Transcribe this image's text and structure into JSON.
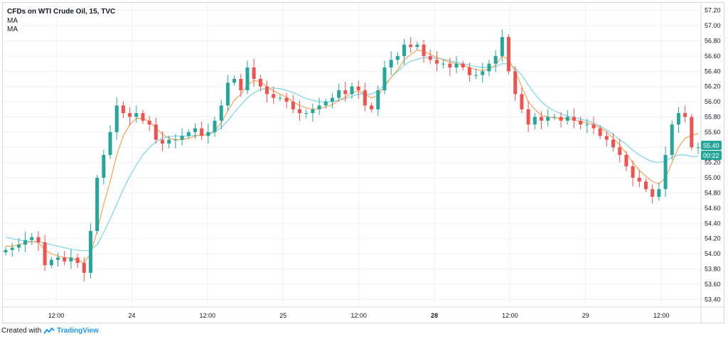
{
  "legend": {
    "title": "CFDs on WTI Crude Oil, 15, TVC",
    "ma1": "MA",
    "ma2": "MA"
  },
  "footer": {
    "created_with": "Created with",
    "brand": "TradingView"
  },
  "price_tag": {
    "price": "55.40",
    "countdown": "00:22"
  },
  "colors": {
    "up": "#26a69a",
    "down": "#ef5350",
    "ma_fast": "#f7a25c",
    "ma_slow": "#7fd3e6",
    "grid": "#eef0f3",
    "tag_bg": "#26a69a"
  },
  "chart_data": {
    "type": "candlestick",
    "title": "CFDs on WTI Crude Oil, 15, TVC",
    "ylim": [
      53.3,
      57.3
    ],
    "y_ticks": [
      "57.20",
      "57.00",
      "56.80",
      "56.60",
      "56.40",
      "56.20",
      "56.00",
      "55.80",
      "55.60",
      "55.40",
      "55.20",
      "55.00",
      "54.80",
      "54.60",
      "54.40",
      "54.20",
      "54.00",
      "53.80",
      "53.60",
      "53.40"
    ],
    "x_ticks": [
      "12:00",
      "24",
      "12:00",
      "25",
      "12:00",
      "28",
      "12:00",
      "29",
      "12:00"
    ],
    "x_ticks_bold": [
      "28"
    ],
    "grid": true,
    "series": [
      {
        "name": "",
        "kind": "close",
        "values": [
          54.05,
          54.08,
          54.12,
          54.18,
          54.22,
          54.15,
          53.85,
          53.92,
          53.95,
          53.9,
          53.95,
          53.88,
          53.75,
          54.3,
          55.0,
          55.3,
          55.6,
          55.95,
          55.85,
          55.8,
          55.85,
          55.75,
          55.7,
          55.5,
          55.45,
          55.5,
          55.5,
          55.55,
          55.6,
          55.65,
          55.55,
          55.6,
          55.75,
          55.95,
          56.25,
          56.3,
          56.15,
          56.45,
          56.3,
          56.2,
          56.1,
          56.05,
          56.05,
          56.0,
          55.9,
          55.85,
          55.85,
          55.9,
          55.95,
          56.0,
          56.05,
          56.15,
          56.1,
          56.2,
          56.15,
          55.95,
          55.9,
          56.15,
          56.45,
          56.55,
          56.6,
          56.75,
          56.72,
          56.75,
          56.6,
          56.55,
          56.5,
          56.5,
          56.45,
          56.5,
          56.45,
          56.35,
          56.35,
          56.4,
          56.5,
          56.6,
          56.85,
          56.4,
          56.1,
          55.9,
          55.7,
          55.8,
          55.75,
          55.8,
          55.8,
          55.75,
          55.8,
          55.75,
          55.7,
          55.7,
          55.65,
          55.55,
          55.5,
          55.4,
          55.3,
          55.15,
          55.0,
          54.95,
          54.85,
          54.75,
          54.85,
          55.3,
          55.7,
          55.85,
          55.8,
          55.4,
          55.4
        ]
      },
      {
        "name": "",
        "kind": "ma_fast",
        "values": [
          54.1,
          54.1,
          54.12,
          54.14,
          54.16,
          54.15,
          54.05,
          54.0,
          53.97,
          53.95,
          53.94,
          53.92,
          53.88,
          54.0,
          54.3,
          54.65,
          54.95,
          55.3,
          55.55,
          55.7,
          55.78,
          55.78,
          55.74,
          55.65,
          55.57,
          55.52,
          55.5,
          55.5,
          55.52,
          55.55,
          55.56,
          55.57,
          55.62,
          55.72,
          55.88,
          56.02,
          56.1,
          56.22,
          56.28,
          56.26,
          56.2,
          56.14,
          56.1,
          56.06,
          56.0,
          55.95,
          55.92,
          55.9,
          55.91,
          55.93,
          55.96,
          56.02,
          56.06,
          56.12,
          56.14,
          56.1,
          56.05,
          56.08,
          56.2,
          56.32,
          56.42,
          56.55,
          56.62,
          56.68,
          56.66,
          56.62,
          56.58,
          56.55,
          56.52,
          56.5,
          56.48,
          56.45,
          56.42,
          56.41,
          56.43,
          56.48,
          56.6,
          56.55,
          56.4,
          56.2,
          56.0,
          55.9,
          55.82,
          55.8,
          55.79,
          55.78,
          55.78,
          55.76,
          55.74,
          55.72,
          55.7,
          55.66,
          55.6,
          55.52,
          55.43,
          55.32,
          55.2,
          55.1,
          55.02,
          54.95,
          54.92,
          55.0,
          55.2,
          55.4,
          55.52,
          55.56,
          55.58
        ]
      },
      {
        "name": "",
        "kind": "ma_slow",
        "values": [
          54.22,
          54.2,
          54.18,
          54.17,
          54.16,
          54.16,
          54.14,
          54.12,
          54.1,
          54.08,
          54.06,
          54.05,
          54.04,
          54.05,
          54.12,
          54.28,
          54.46,
          54.65,
          54.85,
          55.02,
          55.17,
          55.3,
          55.4,
          55.47,
          55.52,
          55.54,
          55.55,
          55.55,
          55.55,
          55.56,
          55.56,
          55.57,
          55.6,
          55.66,
          55.75,
          55.86,
          55.96,
          56.05,
          56.12,
          56.16,
          56.18,
          56.18,
          56.17,
          56.15,
          56.12,
          56.08,
          56.04,
          56.02,
          56.0,
          56.0,
          56.0,
          56.02,
          56.04,
          56.07,
          56.1,
          56.1,
          56.1,
          56.14,
          56.22,
          56.32,
          56.4,
          56.48,
          56.53,
          56.56,
          56.58,
          56.58,
          56.57,
          56.56,
          56.54,
          56.52,
          56.5,
          56.48,
          56.46,
          56.45,
          56.45,
          56.46,
          56.5,
          56.5,
          56.44,
          56.35,
          56.22,
          56.1,
          56.0,
          55.93,
          55.88,
          55.84,
          55.81,
          55.79,
          55.77,
          55.75,
          55.72,
          55.68,
          55.63,
          55.57,
          55.5,
          55.44,
          55.36,
          55.3,
          55.25,
          55.21,
          55.2,
          55.22,
          55.27,
          55.3,
          55.3,
          55.28,
          55.28
        ]
      }
    ]
  }
}
